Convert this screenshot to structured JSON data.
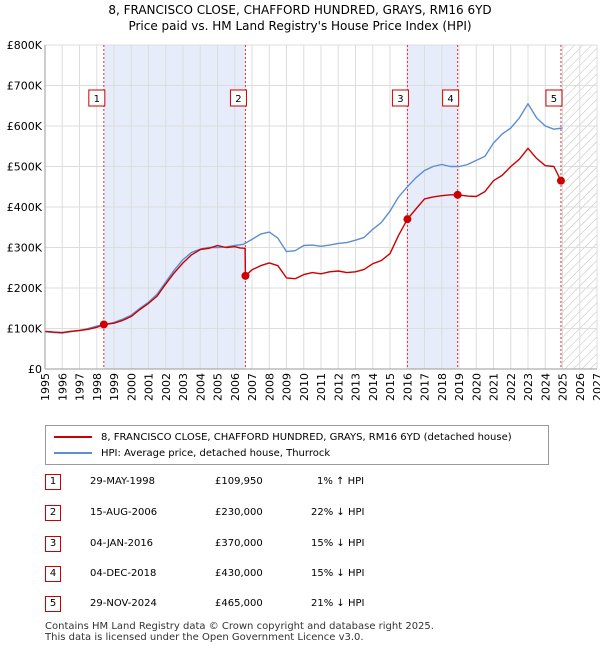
{
  "title_line1": "8, FRANCISCO CLOSE, CHAFFORD HUNDRED, GRAYS, RM16 6YD",
  "title_line2": "Price paid vs. HM Land Registry's House Price Index (HPI)",
  "chart_data": {
    "type": "line",
    "title": "8, FRANCISCO CLOSE, CHAFFORD HUNDRED, GRAYS, RM16 6YD — Price paid vs. HM Land Registry's House Price Index (HPI)",
    "xlim": [
      1995,
      2027
    ],
    "ylim": [
      0,
      800000
    ],
    "x_ticks": [
      1995,
      1996,
      1997,
      1998,
      1999,
      2000,
      2001,
      2002,
      2003,
      2004,
      2005,
      2006,
      2007,
      2008,
      2009,
      2010,
      2011,
      2012,
      2013,
      2014,
      2015,
      2016,
      2017,
      2018,
      2019,
      2020,
      2021,
      2022,
      2023,
      2024,
      2025,
      2026,
      2027
    ],
    "y_ticks": [
      0,
      100000,
      200000,
      300000,
      400000,
      500000,
      600000,
      700000,
      800000
    ],
    "y_tick_labels": [
      "£0",
      "£100K",
      "£200K",
      "£300K",
      "£400K",
      "£500K",
      "£600K",
      "£700K",
      "£800K"
    ],
    "grid": true,
    "series": [
      {
        "name": "8, FRANCISCO CLOSE, CHAFFORD HUNDRED, GRAYS, RM16 6YD (detached house)",
        "color": "#cc0000",
        "x": [
          1995.0,
          1995.5,
          1996.0,
          1996.5,
          1997.0,
          1997.5,
          1998.0,
          1998.41,
          1999.0,
          1999.5,
          2000.0,
          2000.5,
          2001.0,
          2001.5,
          2002.0,
          2002.5,
          2003.0,
          2003.5,
          2004.0,
          2004.5,
          2005.0,
          2005.5,
          2006.0,
          2006.3,
          2006.6,
          2006.62,
          2007.0,
          2007.5,
          2008.0,
          2008.5,
          2009.0,
          2009.5,
          2010.0,
          2010.5,
          2011.0,
          2011.5,
          2012.0,
          2012.5,
          2013.0,
          2013.5,
          2014.0,
          2014.5,
          2015.0,
          2015.5,
          2016.01,
          2016.5,
          2017.0,
          2017.5,
          2018.0,
          2018.5,
          2018.92,
          2019.5,
          2020.0,
          2020.5,
          2021.0,
          2021.5,
          2022.0,
          2022.5,
          2023.0,
          2023.5,
          2024.0,
          2024.5,
          2024.91
        ],
        "y": [
          93000,
          91000,
          90000,
          93000,
          95000,
          98000,
          103000,
          109950,
          113000,
          120000,
          130000,
          147000,
          162000,
          180000,
          210000,
          238000,
          262000,
          282000,
          295000,
          298000,
          305000,
          300000,
          302000,
          299000,
          298000,
          230000,
          245000,
          255000,
          262000,
          255000,
          225000,
          223000,
          233000,
          238000,
          235000,
          240000,
          242000,
          238000,
          240000,
          246000,
          260000,
          268000,
          285000,
          330000,
          370000,
          395000,
          420000,
          425000,
          428000,
          430000,
          430000,
          427000,
          426000,
          438000,
          465000,
          478000,
          500000,
          518000,
          545000,
          520000,
          502000,
          500000,
          465000
        ]
      },
      {
        "name": "HPI: Average price, detached house, Thurrock",
        "color": "#5b8fd0",
        "x": [
          1995.0,
          1995.5,
          1996.0,
          1996.5,
          1997.0,
          1997.5,
          1998.0,
          1998.5,
          1999.0,
          1999.5,
          2000.0,
          2000.5,
          2001.0,
          2001.5,
          2002.0,
          2002.5,
          2003.0,
          2003.5,
          2004.0,
          2004.5,
          2005.0,
          2005.5,
          2006.0,
          2006.5,
          2007.0,
          2007.5,
          2008.0,
          2008.5,
          2009.0,
          2009.5,
          2010.0,
          2010.5,
          2011.0,
          2011.5,
          2012.0,
          2012.5,
          2013.0,
          2013.5,
          2014.0,
          2014.5,
          2015.0,
          2015.5,
          2016.0,
          2016.5,
          2017.0,
          2017.5,
          2018.0,
          2018.5,
          2019.0,
          2019.5,
          2020.0,
          2020.5,
          2021.0,
          2021.5,
          2022.0,
          2022.5,
          2023.0,
          2023.5,
          2024.0,
          2024.5,
          2025.0
        ],
        "y": [
          92000,
          90000,
          89000,
          92000,
          95000,
          100000,
          106000,
          110000,
          115000,
          123000,
          133000,
          150000,
          165000,
          185000,
          215000,
          245000,
          270000,
          288000,
          296000,
          300000,
          300000,
          301000,
          305000,
          308000,
          320000,
          333000,
          338000,
          323000,
          290000,
          292000,
          305000,
          306000,
          303000,
          306000,
          310000,
          312000,
          318000,
          325000,
          345000,
          362000,
          390000,
          425000,
          450000,
          472000,
          490000,
          500000,
          505000,
          500000,
          500000,
          505000,
          515000,
          525000,
          558000,
          580000,
          595000,
          620000,
          655000,
          620000,
          600000,
          592000,
          595000
        ]
      }
    ],
    "sales": [
      {
        "label": "1",
        "x": 1998.41,
        "y": 109950
      },
      {
        "label": "2",
        "x": 2006.62,
        "y": 230000
      },
      {
        "label": "3",
        "x": 2016.01,
        "y": 370000
      },
      {
        "label": "4",
        "x": 2018.92,
        "y": 430000
      },
      {
        "label": "5",
        "x": 2024.91,
        "y": 465000
      }
    ],
    "shaded_ranges": [
      [
        1998.41,
        2006.62
      ],
      [
        2016.01,
        2018.92
      ]
    ],
    "hatched_range": [
      2024.91,
      2027
    ]
  },
  "legend": {
    "red_label": "8, FRANCISCO CLOSE, CHAFFORD HUNDRED, GRAYS, RM16 6YD (detached house)",
    "blue_label": "HPI: Average price, detached house, Thurrock"
  },
  "table": [
    {
      "num": "1",
      "date": "29-MAY-1998",
      "price": "£109,950",
      "hpi": "1% ↑ HPI"
    },
    {
      "num": "2",
      "date": "15-AUG-2006",
      "price": "£230,000",
      "hpi": "22% ↓ HPI"
    },
    {
      "num": "3",
      "date": "04-JAN-2016",
      "price": "£370,000",
      "hpi": "15% ↓ HPI"
    },
    {
      "num": "4",
      "date": "04-DEC-2018",
      "price": "£430,000",
      "hpi": "15% ↓ HPI"
    },
    {
      "num": "5",
      "date": "29-NOV-2024",
      "price": "£465,000",
      "hpi": "21% ↓ HPI"
    }
  ],
  "footer_line1": "Contains HM Land Registry data © Crown copyright and database right 2025.",
  "footer_line2": "This data is licensed under the Open Government Licence v3.0."
}
